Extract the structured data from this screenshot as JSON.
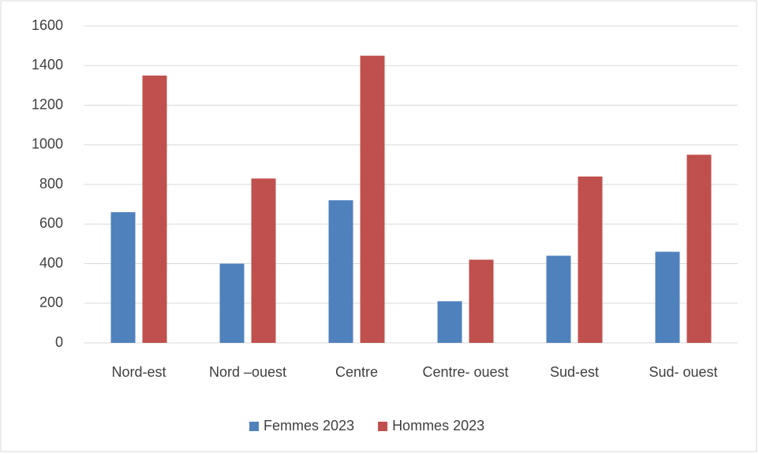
{
  "chart_data": {
    "type": "bar",
    "categories": [
      "Nord-est",
      "Nord –ouest",
      "Centre",
      "Centre- ouest",
      "Sud-est",
      "Sud- ouest"
    ],
    "series": [
      {
        "name": "Femmes 2023",
        "color": "#4f81bd",
        "values": [
          660,
          400,
          720,
          210,
          440,
          460
        ]
      },
      {
        "name": "Hommes 2023",
        "color": "#c0504d",
        "values": [
          1350,
          830,
          1450,
          420,
          840,
          950
        ]
      }
    ],
    "ylim": [
      0,
      1600
    ],
    "yticks": [
      0,
      200,
      400,
      600,
      800,
      1000,
      1200,
      1400,
      1600
    ],
    "grid": true,
    "legend": "bottom"
  }
}
